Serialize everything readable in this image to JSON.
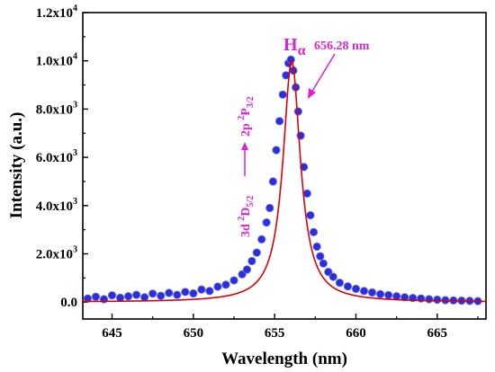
{
  "chart_data": {
    "type": "scatter",
    "xlabel": "Wavelength (nm)",
    "ylabel": "Intensity (a.u.)",
    "xlim": [
      643.2,
      668.0
    ],
    "ylim": [
      -700,
      12000
    ],
    "x_ticks": [
      645,
      650,
      655,
      660,
      665
    ],
    "x_tick_labels": [
      "645",
      "650",
      "655",
      "660",
      "665"
    ],
    "y_ticks": [
      0,
      2000,
      4000,
      6000,
      8000,
      10000,
      12000
    ],
    "y_tick_mantissa": [
      "0.0",
      "2.0x10",
      "4.0x10",
      "6.0x10",
      "8.0x10",
      "1.0x10",
      "1.2x10"
    ],
    "y_tick_exponent": [
      "",
      "3",
      "3",
      "3",
      "3",
      "4",
      "4"
    ],
    "grid": false,
    "series": [
      {
        "kind": "measured points",
        "marker": "filled circle",
        "color": "#2a2fd8",
        "x": [
          643.5,
          644.0,
          644.5,
          645.0,
          645.5,
          646.0,
          646.5,
          647.0,
          647.5,
          648.0,
          648.5,
          649.0,
          649.5,
          650.0,
          650.5,
          651.0,
          651.5,
          652.0,
          652.5,
          653.0,
          653.3,
          653.6,
          653.9,
          654.2,
          654.5,
          654.7,
          654.9,
          655.1,
          655.3,
          655.5,
          655.7,
          655.85,
          656.0,
          656.15,
          656.3,
          656.45,
          656.6,
          656.8,
          657.0,
          657.2,
          657.4,
          657.6,
          657.8,
          658.0,
          658.3,
          658.6,
          659.0,
          659.5,
          660.0,
          660.5,
          661.0,
          661.5,
          662.0,
          662.5,
          663.0,
          663.5,
          664.0,
          664.5,
          665.0,
          665.5,
          666.0,
          666.5,
          667.0,
          667.5
        ],
        "y": [
          150,
          220,
          120,
          280,
          180,
          240,
          300,
          200,
          350,
          260,
          380,
          300,
          420,
          360,
          520,
          460,
          640,
          720,
          900,
          1150,
          1350,
          1700,
          2050,
          2600,
          3300,
          3900,
          5000,
          6300,
          7500,
          8600,
          9400,
          9900,
          10050,
          9600,
          8900,
          7900,
          6900,
          5600,
          4500,
          3600,
          2900,
          2300,
          1900,
          1600,
          1250,
          1050,
          800,
          650,
          550,
          460,
          400,
          330,
          290,
          240,
          200,
          170,
          150,
          120,
          100,
          80,
          70,
          60,
          50,
          40
        ]
      },
      {
        "kind": "fit curve",
        "color": "#e00000",
        "center": 656.05,
        "amplitude": 10000,
        "half_width": 0.65,
        "baseline": 0
      }
    ],
    "annotations": {
      "peak_label": "H",
      "peak_subscript": "α",
      "peak_wavelength": "656.28 nm",
      "upper_state": "3d ",
      "upper_sup": "2",
      "upper_term": "D",
      "upper_sub": "5/2",
      "lower_state": "2p ",
      "lower_sup": "2",
      "lower_term": "P",
      "lower_sub": "3/2",
      "color": "#e020d8"
    }
  }
}
